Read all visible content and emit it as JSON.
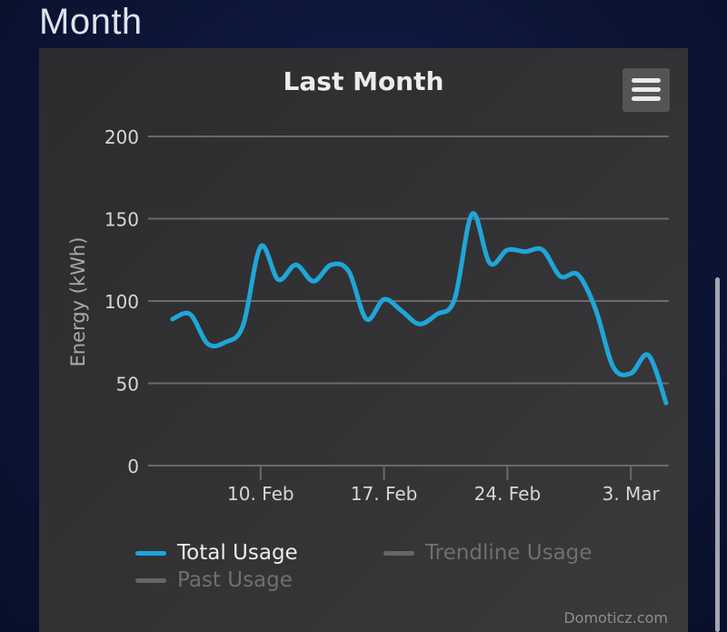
{
  "section": {
    "title": "Month"
  },
  "chart_data": {
    "type": "line",
    "title": "Last Month",
    "xlabel": "",
    "ylabel": "Energy (kWh)",
    "ylim": [
      0,
      200
    ],
    "yticks": [
      0,
      50,
      100,
      150,
      200
    ],
    "xticks": [
      {
        "label": "10. Feb",
        "value": "2021-02-10"
      },
      {
        "label": "17. Feb",
        "value": "2021-02-17"
      },
      {
        "label": "24. Feb",
        "value": "2021-02-24"
      },
      {
        "label": "3. Mar",
        "value": "2021-03-03"
      }
    ],
    "x_range": [
      "2021-02-03",
      "2021-03-05"
    ],
    "grid": true,
    "legend_position": "bottom",
    "series": [
      {
        "name": "Total Usage",
        "color": "#1fa6d8",
        "visible": true,
        "points": [
          [
            "2021-02-05",
            89
          ],
          [
            "2021-02-06",
            92
          ],
          [
            "2021-02-07",
            74
          ],
          [
            "2021-02-08",
            75
          ],
          [
            "2021-02-09",
            85
          ],
          [
            "2021-02-10",
            133
          ],
          [
            "2021-02-11",
            113
          ],
          [
            "2021-02-12",
            122
          ],
          [
            "2021-02-13",
            112
          ],
          [
            "2021-02-14",
            122
          ],
          [
            "2021-02-15",
            118
          ],
          [
            "2021-02-16",
            89
          ],
          [
            "2021-02-17",
            101
          ],
          [
            "2021-02-18",
            94
          ],
          [
            "2021-02-19",
            86
          ],
          [
            "2021-02-20",
            92
          ],
          [
            "2021-02-21",
            101
          ],
          [
            "2021-02-22",
            153
          ],
          [
            "2021-02-23",
            123
          ],
          [
            "2021-02-24",
            131
          ],
          [
            "2021-02-25",
            130
          ],
          [
            "2021-02-26",
            131
          ],
          [
            "2021-02-27",
            115
          ],
          [
            "2021-02-28",
            116
          ],
          [
            "2021-03-01",
            95
          ],
          [
            "2021-03-02",
            60
          ],
          [
            "2021-03-03",
            56
          ],
          [
            "2021-03-04",
            67
          ],
          [
            "2021-03-05",
            38
          ]
        ]
      },
      {
        "name": "Trendline Usage",
        "color": "#666668",
        "visible": false
      },
      {
        "name": "Past Usage",
        "color": "#666668",
        "visible": false
      }
    ]
  },
  "legend": {
    "total_usage": "Total Usage",
    "trendline_usage": "Trendline Usage",
    "past_usage": "Past Usage"
  },
  "colors": {
    "series_active": "#1fa6d8",
    "legend_inactive_text": "#6f6f71",
    "legend_active_text": "#ececec",
    "grid": "#6a6a6c"
  },
  "icons": {
    "menu": "hamburger-menu-icon"
  },
  "credits": "Domoticz.com"
}
